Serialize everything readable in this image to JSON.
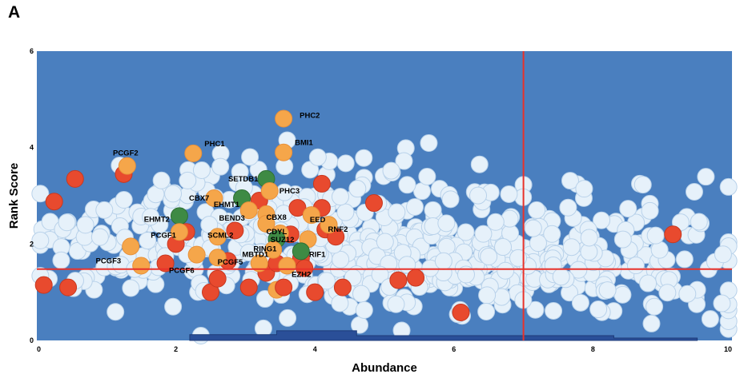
{
  "panel_letter": "A",
  "chart_data": {
    "type": "scatter",
    "title": "",
    "xlabel": "Abundance",
    "ylabel": "Rank Score",
    "xlim": [
      0,
      10
    ],
    "ylim": [
      0,
      6
    ],
    "x_ticks": [
      0,
      2,
      4,
      6,
      8,
      10
    ],
    "y_ticks": [
      0,
      2,
      4,
      6
    ],
    "grid": false,
    "background_color": "#4a7fbf",
    "threshold_lines": {
      "x": 7.0,
      "y": 1.48,
      "color": "#e8322a"
    },
    "colors": {
      "background_points": "#e6f1fa",
      "red": "#e84a2e",
      "orange": "#f5a64a",
      "green": "#3e8a44"
    },
    "histogram_outline": [
      [
        2.2,
        0.08
      ],
      [
        2.2,
        0.12
      ],
      [
        3.45,
        0.12
      ],
      [
        3.45,
        0.2
      ],
      [
        4.6,
        0.2
      ],
      [
        4.6,
        0.1
      ],
      [
        8.3,
        0.1
      ],
      [
        8.3,
        0.05
      ],
      [
        9.5,
        0.05
      ]
    ],
    "highlighted_points": [
      {
        "label": "PHC2",
        "x": 3.55,
        "y": 4.6,
        "color": "orange"
      },
      {
        "label": "BMI1",
        "x": 3.55,
        "y": 3.9,
        "color": "orange"
      },
      {
        "label": "PHC1",
        "x": 2.25,
        "y": 3.88,
        "color": "orange"
      },
      {
        "label": "PCGF2",
        "x": 1.3,
        "y": 3.62,
        "color": "orange"
      },
      {
        "label": "SETDB1",
        "x": 3.3,
        "y": 3.35,
        "color": "green"
      },
      {
        "label": "PHC3",
        "x": 3.35,
        "y": 3.1,
        "color": "orange"
      },
      {
        "label": "CBX7",
        "x": 2.55,
        "y": 2.95,
        "color": "orange"
      },
      {
        "label": "EHMT1",
        "x": 2.95,
        "y": 2.95,
        "color": "green"
      },
      {
        "label": "BEND3",
        "x": 3.05,
        "y": 2.7,
        "color": "orange"
      },
      {
        "label": "EHMT2",
        "x": 2.05,
        "y": 2.58,
        "color": "green"
      },
      {
        "label": "CBX8",
        "x": 3.3,
        "y": 2.62,
        "color": "orange"
      },
      {
        "label": "CDYL",
        "x": 3.3,
        "y": 2.42,
        "color": "orange"
      },
      {
        "label": "EED",
        "x": 3.95,
        "y": 2.6,
        "color": "orange"
      },
      {
        "label": "RNF2",
        "x": 4.2,
        "y": 2.4,
        "color": "orange"
      },
      {
        "label": "SCML2",
        "x": 2.85,
        "y": 2.28,
        "color": "red"
      },
      {
        "label": "SUZ12",
        "x": 3.5,
        "y": 2.22,
        "color": "orange"
      },
      {
        "label": "PCGF1",
        "x": 2.05,
        "y": 2.25,
        "color": "orange"
      },
      {
        "label": "RING1",
        "x": 3.45,
        "y": 2.1,
        "color": "green"
      },
      {
        "label": "RIF1",
        "x": 3.8,
        "y": 1.85,
        "color": "green"
      },
      {
        "label": "MBTD1",
        "x": 3.4,
        "y": 1.88,
        "color": "orange"
      },
      {
        "label": "PCGF5",
        "x": 2.6,
        "y": 1.72,
        "color": "orange"
      },
      {
        "label": "PCGF3",
        "x": 1.35,
        "y": 1.95,
        "color": "orange"
      },
      {
        "label": "PCGF6",
        "x": 2.3,
        "y": 1.78,
        "color": "orange"
      },
      {
        "label": "EZH2",
        "x": 3.55,
        "y": 1.1,
        "color": "red"
      }
    ],
    "other_highlighted_points": [
      {
        "x": 0.55,
        "y": 3.35,
        "color": "red"
      },
      {
        "x": 0.25,
        "y": 2.88,
        "color": "red"
      },
      {
        "x": 0.1,
        "y": 1.15,
        "color": "red"
      },
      {
        "x": 0.45,
        "y": 1.1,
        "color": "red"
      },
      {
        "x": 1.25,
        "y": 3.45,
        "color": "red"
      },
      {
        "x": 1.85,
        "y": 1.6,
        "color": "red"
      },
      {
        "x": 2.0,
        "y": 2.0,
        "color": "red"
      },
      {
        "x": 2.15,
        "y": 2.25,
        "color": "red"
      },
      {
        "x": 2.5,
        "y": 1.0,
        "color": "red"
      },
      {
        "x": 2.6,
        "y": 1.28,
        "color": "red"
      },
      {
        "x": 2.75,
        "y": 1.65,
        "color": "red"
      },
      {
        "x": 3.05,
        "y": 1.1,
        "color": "red"
      },
      {
        "x": 3.2,
        "y": 2.9,
        "color": "red"
      },
      {
        "x": 3.3,
        "y": 1.4,
        "color": "red"
      },
      {
        "x": 3.45,
        "y": 1.6,
        "color": "red"
      },
      {
        "x": 3.65,
        "y": 2.2,
        "color": "red"
      },
      {
        "x": 3.75,
        "y": 2.75,
        "color": "red"
      },
      {
        "x": 3.8,
        "y": 1.7,
        "color": "red"
      },
      {
        "x": 3.85,
        "y": 1.5,
        "color": "red"
      },
      {
        "x": 4.0,
        "y": 1.0,
        "color": "red"
      },
      {
        "x": 4.1,
        "y": 3.25,
        "color": "red"
      },
      {
        "x": 4.1,
        "y": 2.75,
        "color": "red"
      },
      {
        "x": 4.15,
        "y": 2.3,
        "color": "red"
      },
      {
        "x": 4.3,
        "y": 2.15,
        "color": "red"
      },
      {
        "x": 4.4,
        "y": 1.1,
        "color": "red"
      },
      {
        "x": 4.85,
        "y": 2.85,
        "color": "red"
      },
      {
        "x": 5.2,
        "y": 1.25,
        "color": "red"
      },
      {
        "x": 5.45,
        "y": 1.3,
        "color": "red"
      },
      {
        "x": 6.1,
        "y": 0.58,
        "color": "red"
      },
      {
        "x": 9.15,
        "y": 2.2,
        "color": "red"
      },
      {
        "x": 1.5,
        "y": 1.55,
        "color": "orange"
      },
      {
        "x": 2.6,
        "y": 2.15,
        "color": "orange"
      },
      {
        "x": 3.2,
        "y": 1.6,
        "color": "orange"
      },
      {
        "x": 3.45,
        "y": 1.05,
        "color": "orange"
      },
      {
        "x": 3.6,
        "y": 1.55,
        "color": "orange"
      },
      {
        "x": 3.9,
        "y": 2.1,
        "color": "orange"
      }
    ]
  }
}
